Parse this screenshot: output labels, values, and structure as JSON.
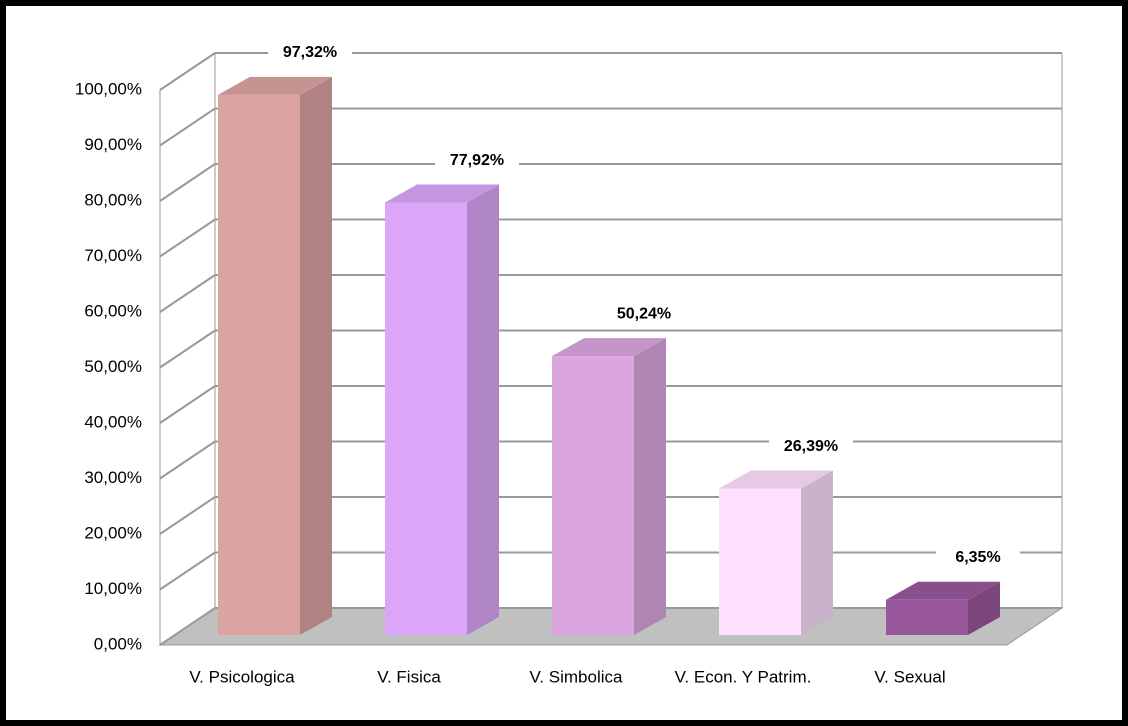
{
  "chart_data": {
    "type": "bar3d",
    "categories": [
      "V. Psicologica",
      "V. Fisica",
      "V. Simbolica",
      "V. Econ. Y Patrim.",
      "V. Sexual"
    ],
    "values": [
      97.32,
      77.92,
      50.24,
      26.39,
      6.35
    ],
    "value_labels": [
      "97,32%",
      "77,92%",
      "50,24%",
      "26,39%",
      "6,35%"
    ],
    "colors": [
      "#dca3a3",
      "#dba6fa",
      "#dba6e0",
      "#fde0fd",
      "#98579b"
    ],
    "ylim": [
      0,
      100
    ],
    "yticks": [
      {
        "value": 0,
        "label": "0,00%"
      },
      {
        "value": 10,
        "label": "10,00%"
      },
      {
        "value": 20,
        "label": "20,00%"
      },
      {
        "value": 30,
        "label": "30,00%"
      },
      {
        "value": 40,
        "label": "40,00%"
      },
      {
        "value": 50,
        "label": "50,00%"
      },
      {
        "value": 60,
        "label": "60,00%"
      },
      {
        "value": 70,
        "label": "70,00%"
      },
      {
        "value": 80,
        "label": "80,00%"
      },
      {
        "value": 90,
        "label": "90,00%"
      },
      {
        "value": 100,
        "label": "100,00%"
      }
    ],
    "grid": true
  }
}
